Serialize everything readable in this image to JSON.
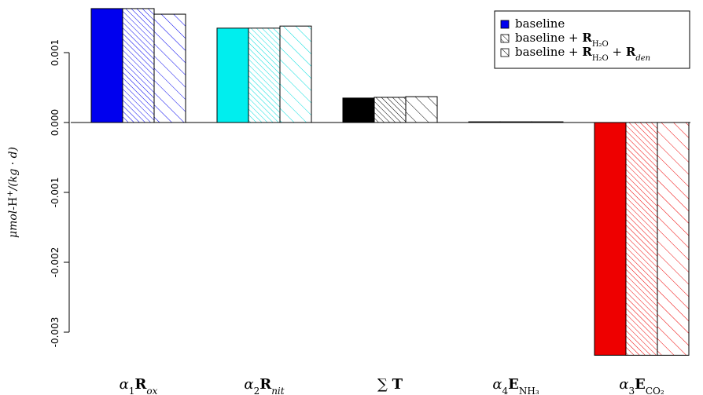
{
  "chart_data": {
    "type": "bar",
    "title": "",
    "xlabel": "",
    "ylabel_parts": {
      "unit": "μmol",
      "sep": "-H",
      "sup": "+",
      "rest": "/(kg · d)"
    },
    "ylim": [
      -0.0033,
      0.0016
    ],
    "yticks": [
      -0.003,
      -0.002,
      -0.001,
      0.0,
      0.001
    ],
    "ytick_labels": [
      "-0.003",
      "-0.002",
      "-0.001",
      "0.000",
      "0.001"
    ],
    "categories": [
      {
        "base": "α",
        "sub1": "1",
        "main": "R",
        "sub2": "ox"
      },
      {
        "base": "α",
        "sub1": "2",
        "main": "R",
        "sub2": "nit"
      },
      {
        "base": "∑",
        "sub1": "",
        "main": "T",
        "sub2": ""
      },
      {
        "base": "α",
        "sub1": "4",
        "main": "E",
        "sub2": "NH₃"
      },
      {
        "base": "α",
        "sub1": "3",
        "main": "E",
        "sub2": "CO₂"
      }
    ],
    "category_colors": [
      "#0000ee",
      "#00eeee",
      "#000000",
      "#000000",
      "#ee0000"
    ],
    "series": [
      {
        "name_parts": [
          "baseline"
        ],
        "pattern": "solid",
        "values": [
          0.00163,
          0.00135,
          0.00035,
          1e-05,
          -0.00333
        ]
      },
      {
        "name_parts": [
          "baseline + ",
          "R",
          "H₂O"
        ],
        "pattern": "dense",
        "values": [
          0.00163,
          0.00135,
          0.00036,
          1e-05,
          -0.00333
        ]
      },
      {
        "name_parts": [
          "baseline + ",
          "R",
          "H₂O",
          " + ",
          "R",
          "den"
        ],
        "pattern": "sparse",
        "values": [
          0.00155,
          0.00138,
          0.00037,
          1e-05,
          -0.00333
        ]
      }
    ],
    "legend_position": "top-right",
    "grid": false
  }
}
